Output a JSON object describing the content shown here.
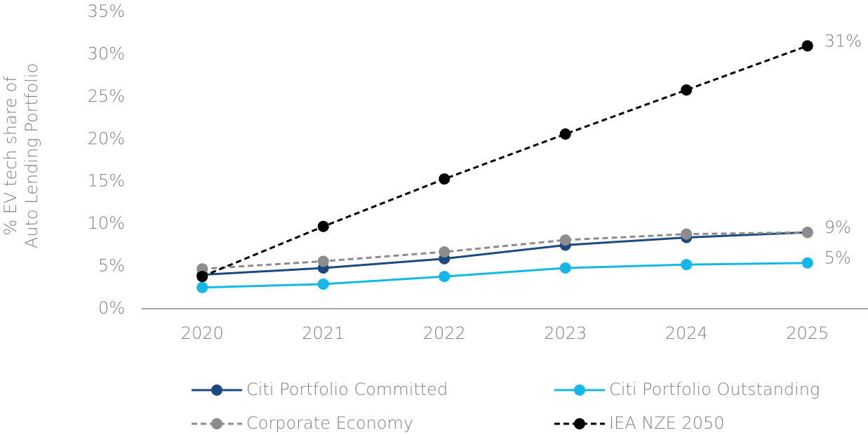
{
  "chart_data": {
    "type": "line",
    "ylabel": [
      "% EV  tech share of",
      "Auto Lending Portfolio"
    ],
    "categories": [
      "2020",
      "2021",
      "2022",
      "2023",
      "2024",
      "2025"
    ],
    "ylim": [
      0,
      35
    ],
    "yticks": [
      {
        "value": 0,
        "label": "0%"
      },
      {
        "value": 5,
        "label": "5%"
      },
      {
        "value": 10,
        "label": "10%"
      },
      {
        "value": 15,
        "label": "15%"
      },
      {
        "value": 20,
        "label": "20%"
      },
      {
        "value": 25,
        "label": "25%"
      },
      {
        "value": 30,
        "label": "30%"
      },
      {
        "value": 35,
        "label": "35%"
      }
    ],
    "series": [
      {
        "name": "Citi Portfolio Committed",
        "color": "#1a4a80",
        "dashed": false,
        "values": [
          4.0,
          4.8,
          5.9,
          7.5,
          8.4,
          9.0
        ]
      },
      {
        "name": "Citi Portfolio Outstanding",
        "color": "#12b9e8",
        "dashed": false,
        "values": [
          2.5,
          2.9,
          3.8,
          4.8,
          5.2,
          5.4
        ],
        "value_labels": [
          null,
          null,
          null,
          null,
          null,
          "5%"
        ]
      },
      {
        "name": "Corporate Economy",
        "color": "#8c8c8c",
        "dashed": true,
        "values": [
          4.7,
          5.6,
          6.7,
          8.1,
          8.8,
          9.0
        ],
        "value_labels": [
          null,
          null,
          null,
          null,
          null,
          "9%"
        ]
      },
      {
        "name": "IEA NZE 2050",
        "color": "#000000",
        "dashed": true,
        "values": [
          3.8,
          9.7,
          15.3,
          20.6,
          25.8,
          31.0
        ],
        "value_labels": [
          null,
          null,
          null,
          null,
          null,
          "31%"
        ]
      }
    ]
  }
}
